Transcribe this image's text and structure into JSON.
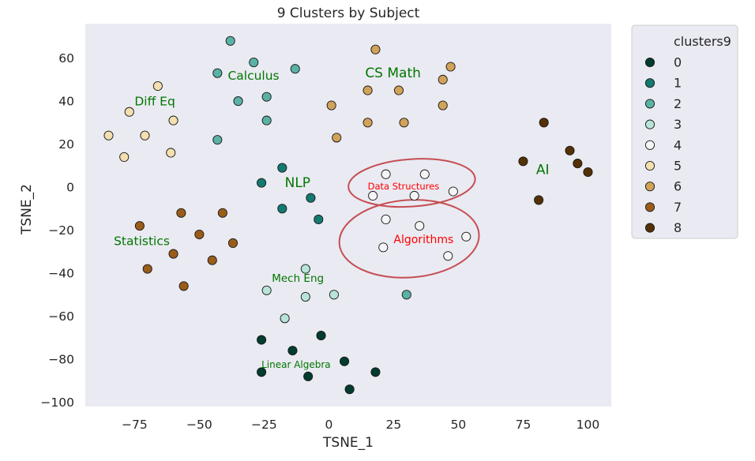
{
  "chart_data": {
    "type": "scatter",
    "title": "9 Clusters by Subject",
    "xlabel": "TSNE_1",
    "ylabel": "TSNE_2",
    "xlim": [
      -94,
      109
    ],
    "ylim": [
      -102,
      76
    ],
    "xticks": [
      -75,
      -50,
      -25,
      0,
      25,
      50,
      75,
      100
    ],
    "yticks": [
      -100,
      -80,
      -60,
      -40,
      -20,
      0,
      20,
      40,
      60
    ],
    "xtick_labels": [
      "−75",
      "−50",
      "−25",
      "0",
      "25",
      "50",
      "75",
      "100"
    ],
    "ytick_labels": [
      "−100",
      "−80",
      "−60",
      "−40",
      "−20",
      "0",
      "20",
      "40",
      "60"
    ],
    "grid": false,
    "background": "#eaeaf2",
    "legend": {
      "title": "clusters9",
      "placement": "outside-right",
      "entries": [
        "0",
        "1",
        "2",
        "3",
        "4",
        "5",
        "6",
        "7",
        "8"
      ]
    },
    "series": [
      {
        "name": "0",
        "color": "#003c30",
        "points": [
          [
            -26,
            -71
          ],
          [
            -14,
            -76
          ],
          [
            -3,
            -69
          ],
          [
            6,
            -81
          ],
          [
            -26,
            -86
          ],
          [
            -8,
            -88
          ],
          [
            18,
            -86
          ],
          [
            8,
            -94
          ]
        ]
      },
      {
        "name": "1",
        "color": "#127a70",
        "points": [
          [
            -18,
            9
          ],
          [
            -26,
            2
          ],
          [
            -7,
            -5
          ],
          [
            -18,
            -10
          ],
          [
            -4,
            -15
          ]
        ]
      },
      {
        "name": "2",
        "color": "#5ab2a6",
        "points": [
          [
            -38,
            68
          ],
          [
            -29,
            58
          ],
          [
            -13,
            55
          ],
          [
            -43,
            53
          ],
          [
            -35,
            40
          ],
          [
            -24,
            42
          ],
          [
            -24,
            31
          ],
          [
            -43,
            22
          ],
          [
            30,
            -50
          ]
        ]
      },
      {
        "name": "3",
        "color": "#b8e3d8",
        "points": [
          [
            -9,
            -38
          ],
          [
            -24,
            -48
          ],
          [
            -9,
            -51
          ],
          [
            2,
            -50
          ],
          [
            -17,
            -61
          ]
        ]
      },
      {
        "name": "4",
        "color": "#f5f5f5",
        "points": [
          [
            22,
            6
          ],
          [
            37,
            6
          ],
          [
            17,
            -4
          ],
          [
            48,
            -2
          ],
          [
            33,
            -4
          ],
          [
            22,
            -15
          ],
          [
            35,
            -18
          ],
          [
            53,
            -23
          ],
          [
            21,
            -28
          ],
          [
            46,
            -32
          ]
        ]
      },
      {
        "name": "5",
        "color": "#f4dfb0",
        "points": [
          [
            -66,
            47
          ],
          [
            -77,
            35
          ],
          [
            -60,
            31
          ],
          [
            -85,
            24
          ],
          [
            -71,
            24
          ],
          [
            -61,
            16
          ],
          [
            -79,
            14
          ]
        ]
      },
      {
        "name": "6",
        "color": "#d1a259",
        "points": [
          [
            18,
            64
          ],
          [
            47,
            56
          ],
          [
            44,
            50
          ],
          [
            27,
            45
          ],
          [
            15,
            45
          ],
          [
            1,
            38
          ],
          [
            44,
            38
          ],
          [
            15,
            30
          ],
          [
            29,
            30
          ],
          [
            3,
            23
          ]
        ]
      },
      {
        "name": "7",
        "color": "#9a5c19",
        "points": [
          [
            -73,
            -18
          ],
          [
            -57,
            -12
          ],
          [
            -41,
            -12
          ],
          [
            -50,
            -22
          ],
          [
            -37,
            -26
          ],
          [
            -60,
            -31
          ],
          [
            -45,
            -34
          ],
          [
            -70,
            -38
          ],
          [
            -56,
            -46
          ]
        ]
      },
      {
        "name": "8",
        "color": "#543005",
        "points": [
          [
            83,
            30
          ],
          [
            93,
            17
          ],
          [
            75,
            12
          ],
          [
            96,
            11
          ],
          [
            100,
            7
          ],
          [
            81,
            -6
          ]
        ]
      }
    ],
    "annotations": [
      {
        "text": "Calculus",
        "x": -39,
        "y": 50,
        "color": "#007700",
        "size": 15.5
      },
      {
        "text": "CS Math",
        "x": 14,
        "y": 51,
        "color": "#007700",
        "size": 17
      },
      {
        "text": "Diff Eq",
        "x": -75,
        "y": 38,
        "color": "#007700",
        "size": 15.5
      },
      {
        "text": "NLP",
        "x": -17,
        "y": 0,
        "color": "#007700",
        "size": 17
      },
      {
        "text": "AI",
        "x": 80,
        "y": 6,
        "color": "#007700",
        "size": 17
      },
      {
        "text": "Statistics",
        "x": -83,
        "y": -27,
        "color": "#007700",
        "size": 15.5
      },
      {
        "text": "Mech Eng",
        "x": -22,
        "y": -44,
        "color": "#007700",
        "size": 13.5
      },
      {
        "text": "Linear Algebra",
        "x": -26,
        "y": -84,
        "color": "#007700",
        "size": 12
      },
      {
        "text": "Data Structures",
        "x": 15,
        "y": -1,
        "color": "#ff0000",
        "size": 11.5
      },
      {
        "text": "Algorithms",
        "x": 25,
        "y": -26,
        "color": "#ff0000",
        "size": 14
      }
    ],
    "ellipses": [
      {
        "cx": 32,
        "cy": 2,
        "rx": 24.5,
        "ry": 11,
        "color": "#c44e52"
      },
      {
        "cx": 31,
        "cy": -24,
        "rx": 27,
        "ry": 18,
        "color": "#c44e52"
      }
    ]
  }
}
